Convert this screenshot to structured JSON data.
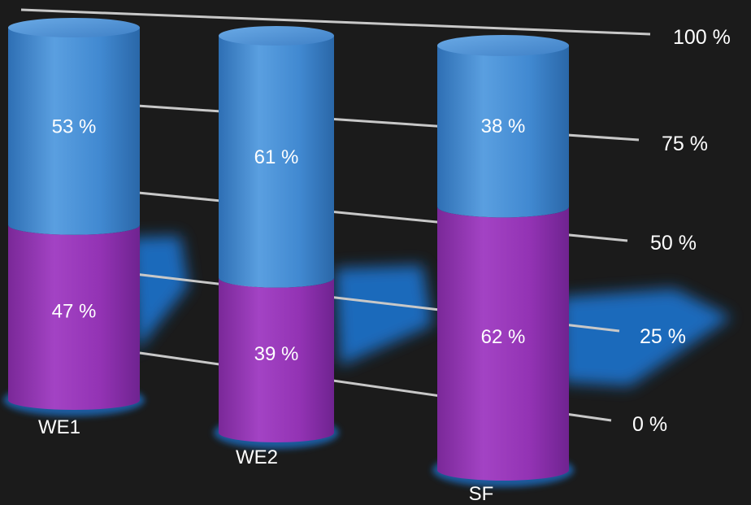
{
  "chart_data": {
    "type": "bar",
    "stacked": true,
    "percent_scale": true,
    "style": "3d-cylinder",
    "categories": [
      "WE1",
      "WE2",
      "SF"
    ],
    "series": [
      {
        "values": [
          47,
          39,
          62
        ],
        "labels": [
          "47 %",
          "39 %",
          "62 %"
        ],
        "color": "#9433b4"
      },
      {
        "values": [
          53,
          61,
          38
        ],
        "labels": [
          "53 %",
          "61 %",
          "38 %"
        ],
        "color": "#3f88d0"
      }
    ],
    "yticks": [
      "0 %",
      "25 %",
      "50 %",
      "75 %",
      "100 %"
    ],
    "ylim": [
      0,
      100
    ],
    "grid": true,
    "background": "#1b1b1b",
    "shadow_color": "#1c78d8"
  }
}
